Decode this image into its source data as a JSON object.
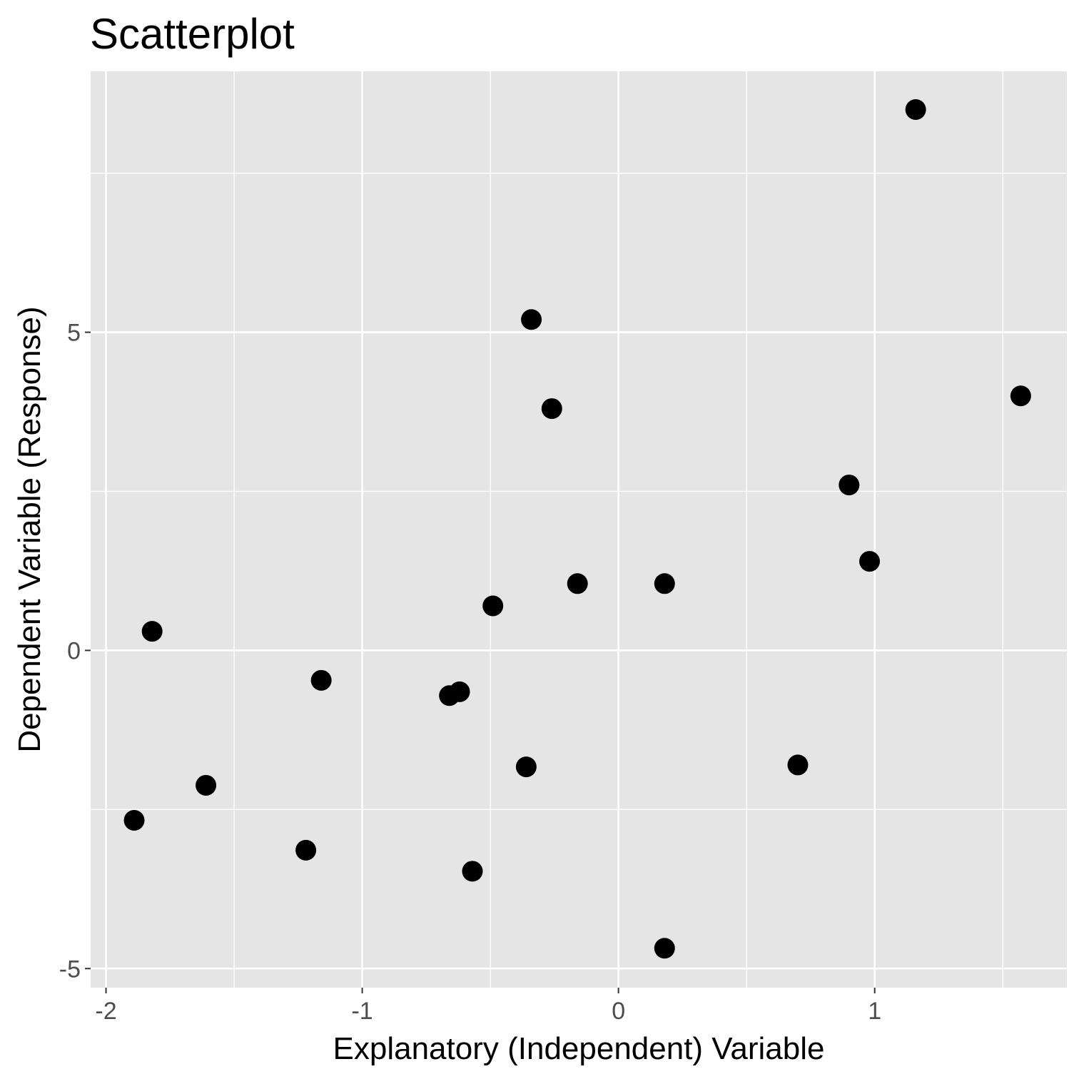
{
  "chart_data": {
    "type": "scatter",
    "title": "Scatterplot",
    "xlabel": "Explanatory (Independent) Variable",
    "ylabel": "Dependent Variable (Response)",
    "xlim": [
      -2.06,
      1.75
    ],
    "ylim": [
      -5.3,
      9.1
    ],
    "x_ticks": [
      -2,
      -1,
      0,
      1
    ],
    "x_tick_labels": [
      "-2",
      "-1",
      "0",
      "1"
    ],
    "y_ticks": [
      -5,
      0,
      5
    ],
    "y_tick_labels": [
      "-5",
      "0",
      "5"
    ],
    "x_minor_gridlines": [
      -1.5,
      -0.5,
      0.5,
      1.5
    ],
    "y_minor_gridlines": [
      -2.5,
      2.5,
      7.5
    ],
    "grid": true,
    "legend": "none",
    "panel_background": "#e5e5e5",
    "grid_color": "#ffffff",
    "point_color": "#000000",
    "x": [
      1.16,
      -0.34,
      -0.26,
      1.57,
      0.9,
      0.98,
      -0.16,
      0.18,
      -0.49,
      -1.82,
      -1.16,
      -0.62,
      -0.66,
      -0.36,
      0.7,
      -1.61,
      -1.89,
      -1.22,
      -0.57,
      0.18
    ],
    "y": [
      8.5,
      5.2,
      3.8,
      4.0,
      2.6,
      1.4,
      1.05,
      1.05,
      0.7,
      0.3,
      -0.47,
      -0.65,
      -0.71,
      -1.83,
      -1.8,
      -2.12,
      -2.67,
      -3.14,
      -3.47,
      -4.68
    ]
  }
}
